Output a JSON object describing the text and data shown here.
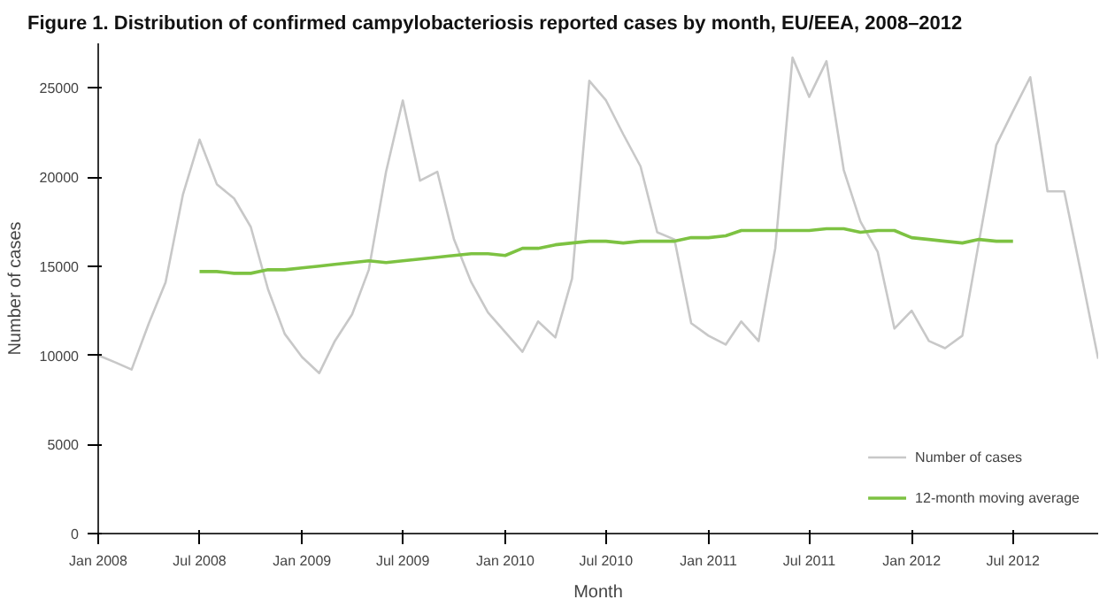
{
  "chart_data": {
    "type": "line",
    "title": "Figure 1. Distribution of confirmed campylobacteriosis reported cases by month, EU/EEA, 2008–2012",
    "xlabel": "Month",
    "ylabel": "Number of cases",
    "xlim": [
      "2008-01",
      "2012-12"
    ],
    "xticks": [
      {
        "value": "2008-01",
        "label": "Jan 2008"
      },
      {
        "value": "2008-07",
        "label": "Jul 2008"
      },
      {
        "value": "2009-01",
        "label": "Jan 2009"
      },
      {
        "value": "2009-07",
        "label": "Jul 2009"
      },
      {
        "value": "2010-01",
        "label": "Jan 2010"
      },
      {
        "value": "2010-07",
        "label": "Jul 2010"
      },
      {
        "value": "2011-01",
        "label": "Jan 2011"
      },
      {
        "value": "2011-07",
        "label": "Jul 2011"
      },
      {
        "value": "2012-01",
        "label": "Jan 2012"
      },
      {
        "value": "2012-07",
        "label": "Jul 2012"
      }
    ],
    "ylim": [
      0,
      27500
    ],
    "yticks": [
      0,
      5000,
      10000,
      15000,
      20000,
      25000
    ],
    "grid": false,
    "legend": "bottom right",
    "marker": "none",
    "line_style": "solid",
    "series": [
      {
        "name": "Number of cases",
        "color": "#c8c8c8",
        "x": [
          "2008-01",
          "2008-02",
          "2008-03",
          "2008-04",
          "2008-05",
          "2008-06",
          "2008-07",
          "2008-08",
          "2008-09",
          "2008-10",
          "2008-11",
          "2008-12",
          "2009-01",
          "2009-02",
          "2009-03",
          "2009-04",
          "2009-05",
          "2009-06",
          "2009-07",
          "2009-08",
          "2009-09",
          "2009-10",
          "2009-11",
          "2009-12",
          "2010-01",
          "2010-02",
          "2010-03",
          "2010-04",
          "2010-05",
          "2010-06",
          "2010-07",
          "2010-08",
          "2010-09",
          "2010-10",
          "2010-11",
          "2010-12",
          "2011-01",
          "2011-02",
          "2011-03",
          "2011-04",
          "2011-05",
          "2011-06",
          "2011-07",
          "2011-08",
          "2011-09",
          "2011-10",
          "2011-11",
          "2011-12",
          "2012-01",
          "2012-02",
          "2012-03",
          "2012-04",
          "2012-05",
          "2012-06",
          "2012-07",
          "2012-08",
          "2012-09",
          "2012-10",
          "2012-11",
          "2012-12"
        ],
        "values": [
          10000,
          9600,
          9200,
          11800,
          14100,
          19000,
          22100,
          19600,
          18800,
          17200,
          13700,
          11200,
          9900,
          9000,
          10800,
          12300,
          14800,
          20300,
          24300,
          19800,
          20300,
          16500,
          14100,
          12400,
          11300,
          10200,
          11900,
          11000,
          14300,
          25400,
          24300,
          22400,
          20600,
          16900,
          16500,
          11800,
          11100,
          10600,
          11900,
          10800,
          16000,
          26700,
          24500,
          26500,
          20400,
          17500,
          15800,
          11500,
          12500,
          10800,
          10400,
          11100,
          16400,
          21800,
          23700,
          25600,
          19200,
          19200,
          14500,
          9800
        ]
      },
      {
        "name": "12-month moving average",
        "color": "#7dc242",
        "x": [
          "2008-07",
          "2008-08",
          "2008-09",
          "2008-10",
          "2008-11",
          "2008-12",
          "2009-01",
          "2009-02",
          "2009-03",
          "2009-04",
          "2009-05",
          "2009-06",
          "2009-07",
          "2009-08",
          "2009-09",
          "2009-10",
          "2009-11",
          "2009-12",
          "2010-01",
          "2010-02",
          "2010-03",
          "2010-04",
          "2010-05",
          "2010-06",
          "2010-07",
          "2010-08",
          "2010-09",
          "2010-10",
          "2010-11",
          "2010-12",
          "2011-01",
          "2011-02",
          "2011-03",
          "2011-04",
          "2011-05",
          "2011-06",
          "2011-07",
          "2011-08",
          "2011-09",
          "2011-10",
          "2011-11",
          "2011-12",
          "2012-01",
          "2012-02",
          "2012-03",
          "2012-04",
          "2012-05",
          "2012-06",
          "2012-07"
        ],
        "values": [
          14700,
          14700,
          14600,
          14600,
          14800,
          14800,
          14900,
          15000,
          15100,
          15200,
          15300,
          15200,
          15300,
          15400,
          15500,
          15600,
          15700,
          15700,
          15600,
          16000,
          16000,
          16200,
          16300,
          16400,
          16400,
          16300,
          16400,
          16400,
          16400,
          16600,
          16600,
          16700,
          17000,
          17000,
          17000,
          17000,
          17000,
          17100,
          17100,
          16900,
          17000,
          17000,
          16600,
          16500,
          16400,
          16300,
          16500,
          16400,
          16400
        ]
      }
    ]
  }
}
